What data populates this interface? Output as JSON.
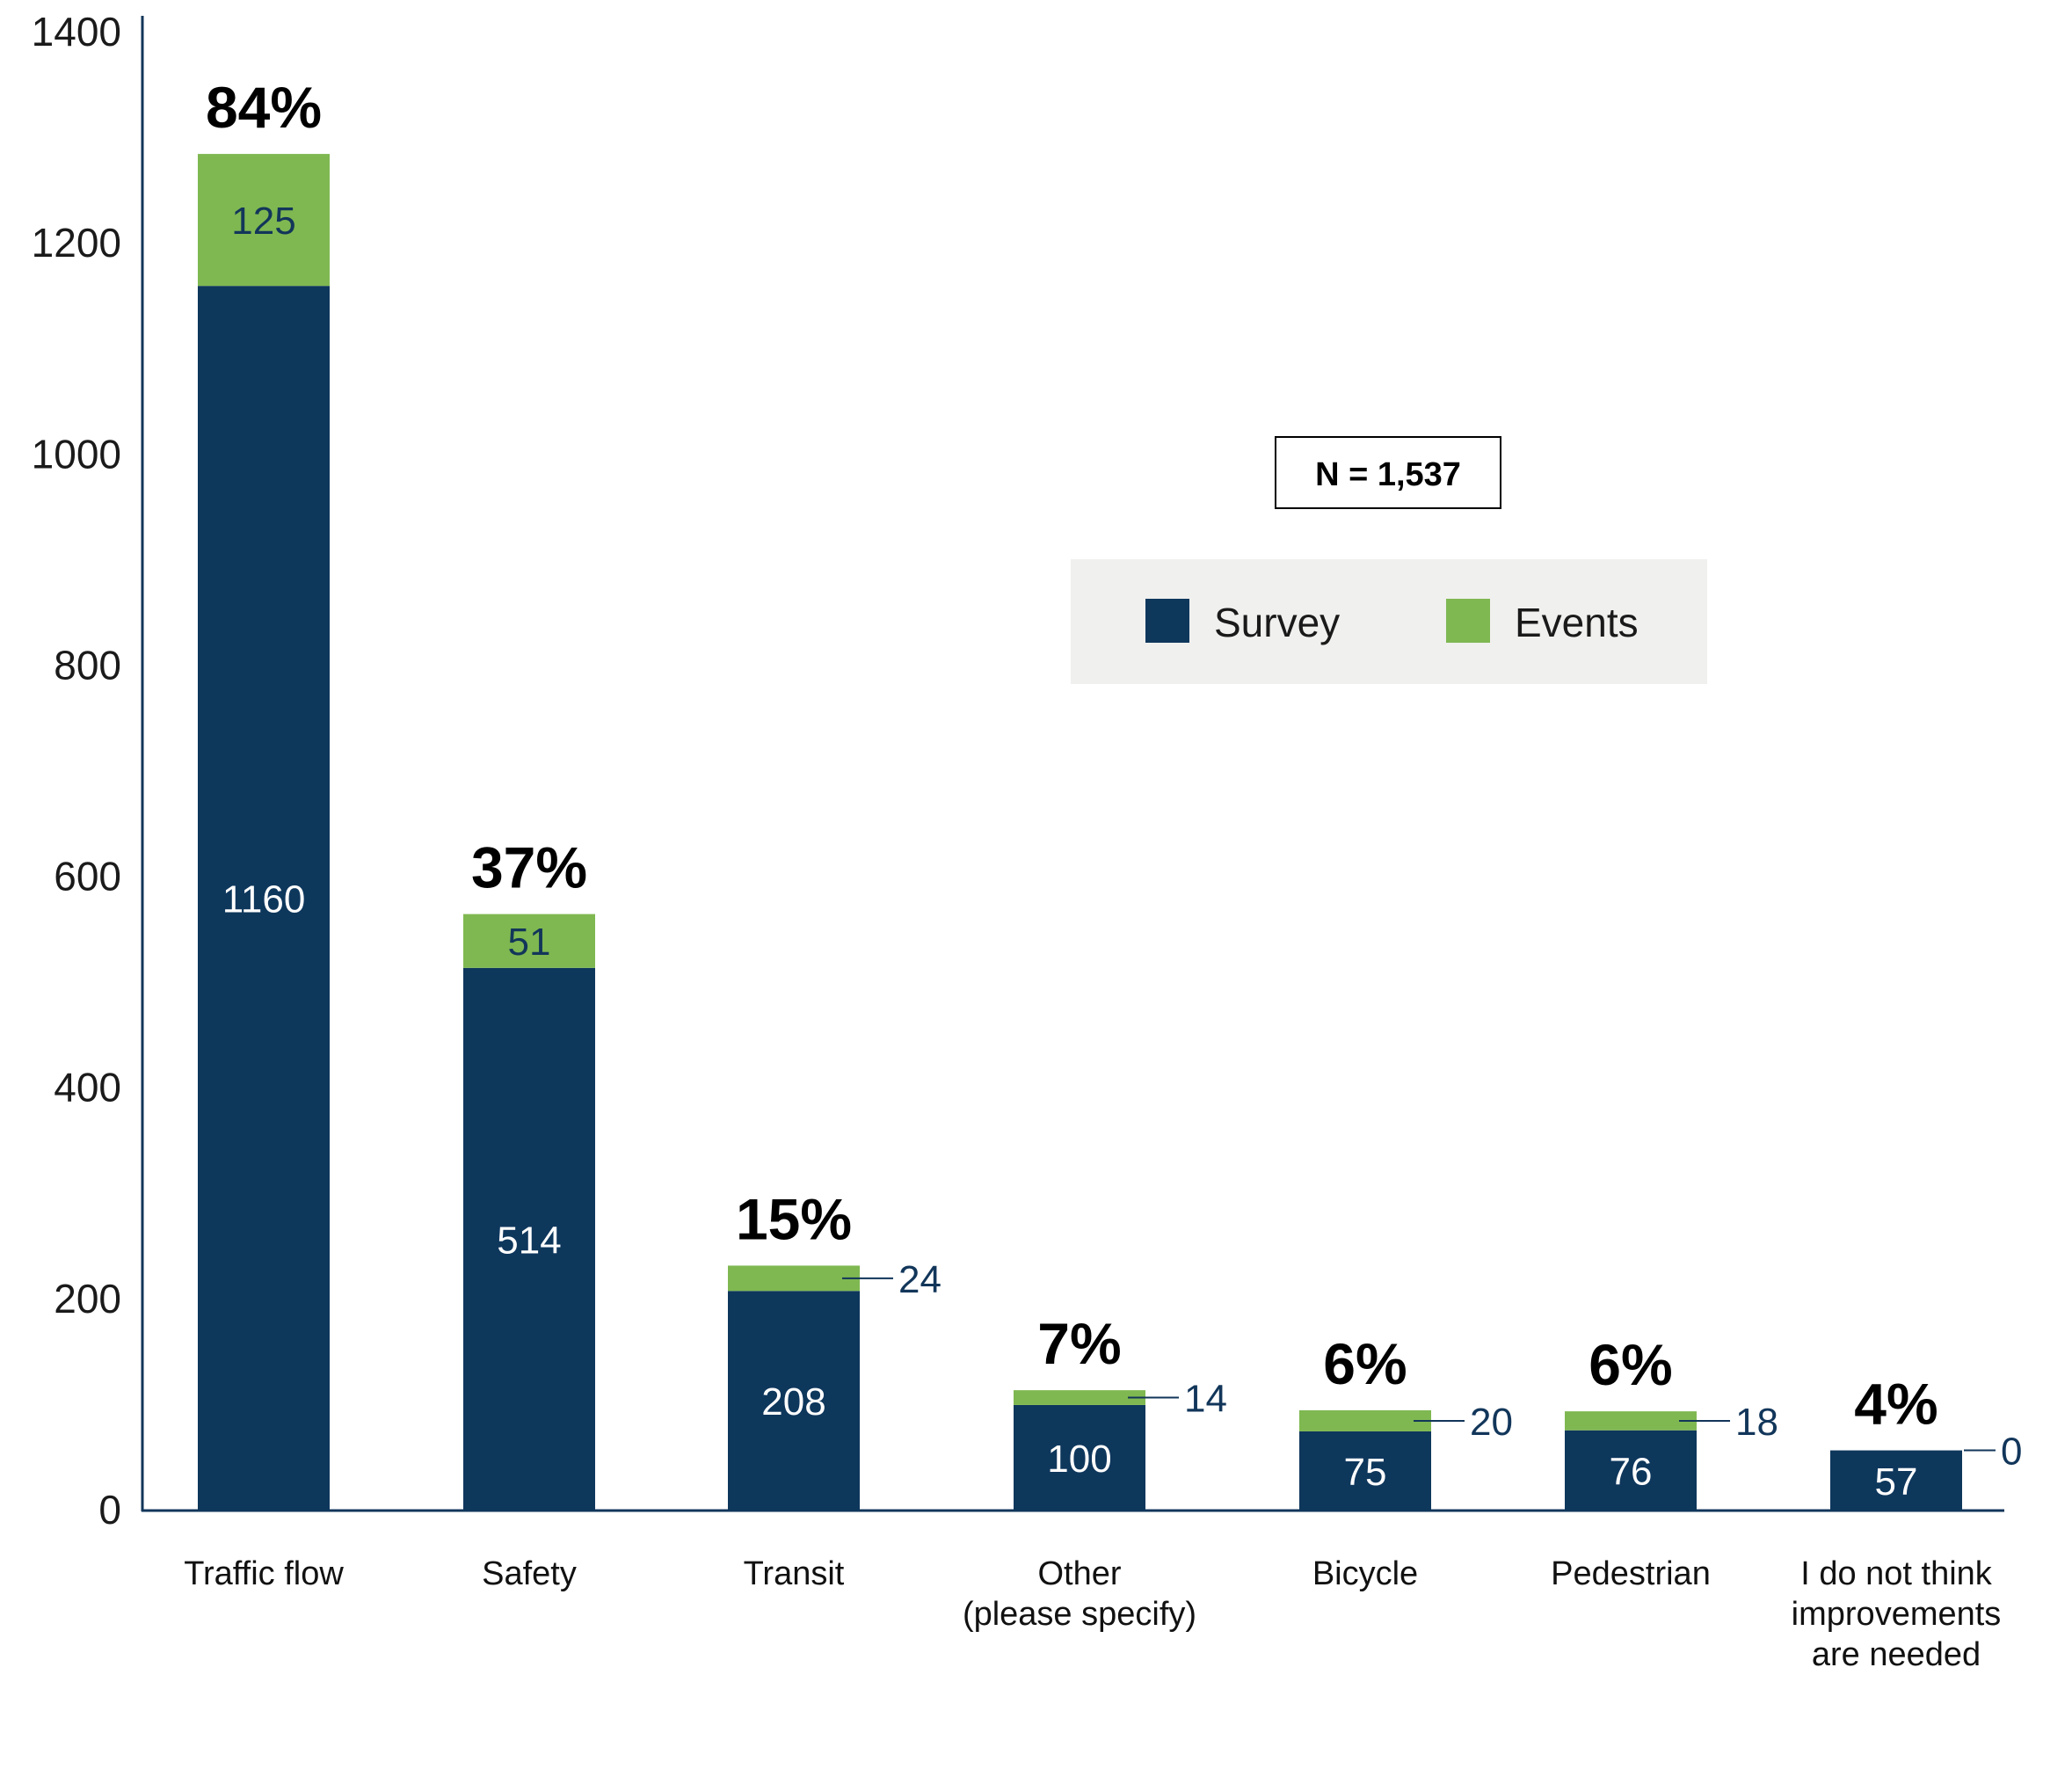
{
  "chart_data": {
    "type": "bar",
    "stacked": true,
    "categories": [
      "Traffic flow",
      "Safety",
      "Transit",
      "Other\n(please specify)",
      "Bicycle",
      "Pedestrian",
      "I do not think\nimprovements\nare needed"
    ],
    "series": [
      {
        "name": "Survey",
        "values": [
          1160,
          514,
          208,
          100,
          75,
          76,
          57
        ]
      },
      {
        "name": "Events",
        "values": [
          125,
          51,
          24,
          14,
          20,
          18,
          0
        ]
      }
    ],
    "percent_labels": [
      "84%",
      "37%",
      "15%",
      "7%",
      "6%",
      "6%",
      "4%"
    ],
    "ylim": [
      0,
      1400
    ],
    "yticks": [
      0,
      200,
      400,
      600,
      800,
      1000,
      1200,
      1400
    ],
    "annotation": "N = 1,537",
    "legend_position": "upper-right",
    "grid": false,
    "colors": {
      "Survey": "#0e375c",
      "Events": "#7fb851",
      "legend_bg": "#f0f0ee"
    }
  }
}
